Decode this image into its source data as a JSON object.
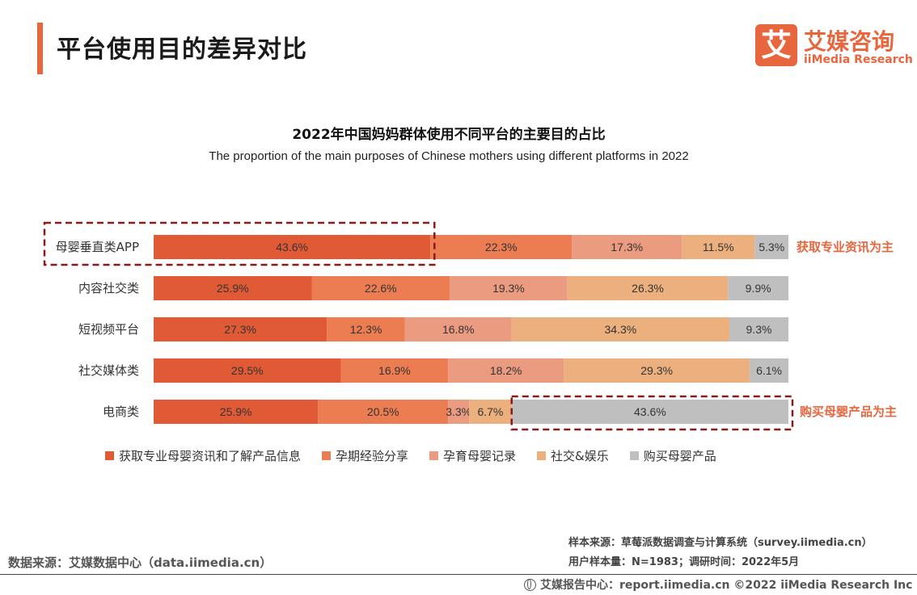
{
  "header": {
    "title": "平台使用目的差异对比"
  },
  "logo": {
    "mark": "艾",
    "name_cn": "艾媒咨询",
    "name_en": "iiMedia Research"
  },
  "footer": {
    "sample_source": "样本来源：草莓派数据调查与计算系统（survey.iimedia.cn）",
    "sample_size": "用户样本量：N=1983；调研时间：2022年5月",
    "data_source": "数据来源：艾媒数据中心（data.iimedia.cn）",
    "copyright": "艾媒报告中心：report.iimedia.cn   ©2022  iiMedia Research  Inc"
  },
  "colors": {
    "accent": "#e8663d",
    "series": [
      "#e05a35",
      "#ec7d52",
      "#eb9b80",
      "#ebb07e",
      "#bfbfbf"
    ],
    "highlight_box": "#8b1a1a",
    "annotation_text": "#e8663d"
  },
  "chart_data": {
    "type": "bar",
    "orientation": "horizontal",
    "stacked": true,
    "title": "2022年中国妈妈群体使用不同平台的主要目的占比",
    "subtitle": "The proportion of the main purposes of Chinese mothers using different platforms in 2022",
    "unit": "%",
    "categories": [
      "母婴垂直类APP",
      "内容社交类",
      "短视频平台",
      "社交媒体类",
      "电商类"
    ],
    "series": [
      {
        "name": "获取专业母婴资讯和了解产品信息",
        "values": [
          43.6,
          25.9,
          27.3,
          29.5,
          25.9
        ]
      },
      {
        "name": "孕期经验分享",
        "values": [
          22.3,
          22.6,
          12.3,
          16.9,
          20.5
        ]
      },
      {
        "name": "孕育母婴记录",
        "values": [
          17.3,
          19.3,
          16.8,
          18.2,
          3.3
        ]
      },
      {
        "name": "社交&娱乐",
        "values": [
          11.5,
          26.3,
          34.3,
          29.3,
          6.7
        ]
      },
      {
        "name": "购买母婴产品",
        "values": [
          5.3,
          9.9,
          9.3,
          6.1,
          43.6
        ]
      }
    ],
    "legend_position": "bottom",
    "annotations": [
      {
        "category": "母婴垂直类APP",
        "series": "获取专业母婴资讯和了解产品信息",
        "text": "获取专业资讯为主"
      },
      {
        "category": "电商类",
        "series": "购买母婴产品",
        "text": "购买母婴产品为主"
      }
    ]
  }
}
